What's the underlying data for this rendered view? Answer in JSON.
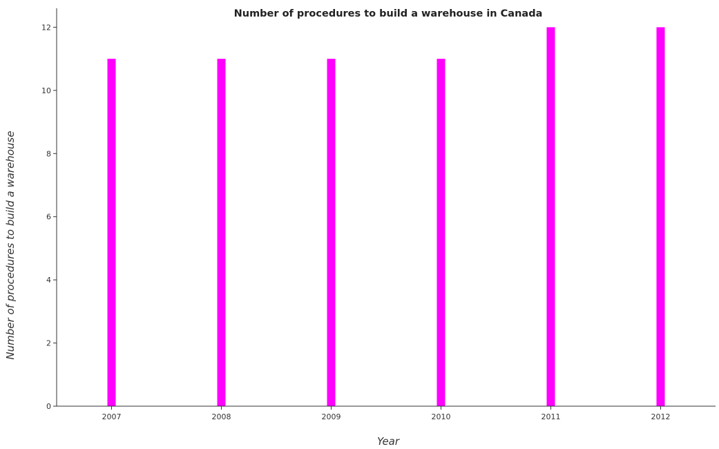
{
  "chart_data": {
    "type": "bar",
    "title": "Number of procedures to build a warehouse in Canada",
    "xlabel": "Year",
    "ylabel": "Number of procedures to build a warehouse",
    "categories": [
      "2007",
      "2008",
      "2009",
      "2010",
      "2011",
      "2012"
    ],
    "values": [
      11,
      11,
      11,
      11,
      12,
      12
    ],
    "ylim": [
      0,
      12.6
    ],
    "yticks": [
      0,
      2,
      4,
      6,
      8,
      10,
      12
    ],
    "ytick_labels": [
      "0",
      "2",
      "4",
      "6",
      "8",
      "10",
      "12"
    ],
    "bar_color": "#ff00ff",
    "grid": false,
    "legend": "none"
  }
}
